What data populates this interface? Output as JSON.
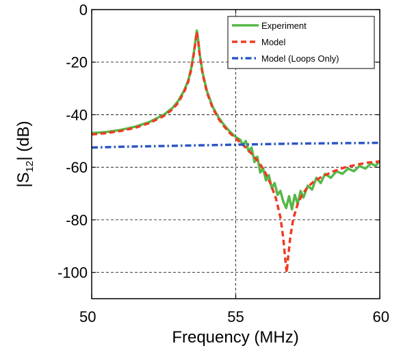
{
  "chart_data": {
    "type": "line",
    "title": "",
    "xlabel": "Frequency (MHz)",
    "ylabel": {
      "prefix": "|S",
      "sub": "12",
      "suffix": "| (dB)"
    },
    "xlim": [
      50,
      60
    ],
    "ylim": [
      -110,
      0
    ],
    "xticks": [
      50,
      55,
      60
    ],
    "yticks": [
      0,
      -20,
      -40,
      -60,
      -80,
      -100
    ],
    "grid": true,
    "legend_position": "top-right",
    "colors": {
      "experiment": "#55b847",
      "model": "#ee3b22",
      "loops": "#2a56c6"
    },
    "series": [
      {
        "name": "Experiment",
        "style": "solid",
        "points": [
          [
            50,
            -47
          ],
          [
            50.5,
            -46.6
          ],
          [
            51,
            -45.8
          ],
          [
            51.5,
            -44.6
          ],
          [
            52,
            -42.8
          ],
          [
            52.5,
            -40
          ],
          [
            52.8,
            -37.5
          ],
          [
            53,
            -34.8
          ],
          [
            53.2,
            -31
          ],
          [
            53.35,
            -27
          ],
          [
            53.45,
            -22.5
          ],
          [
            53.55,
            -16
          ],
          [
            53.6,
            -12
          ],
          [
            53.65,
            -8
          ],
          [
            53.7,
            -12
          ],
          [
            53.75,
            -17
          ],
          [
            53.85,
            -24
          ],
          [
            54,
            -31
          ],
          [
            54.2,
            -37
          ],
          [
            54.4,
            -41
          ],
          [
            54.6,
            -44
          ],
          [
            54.8,
            -46.5
          ],
          [
            55,
            -48.5
          ],
          [
            55.15,
            -49.5
          ],
          [
            55.25,
            -51.5
          ],
          [
            55.35,
            -50
          ],
          [
            55.45,
            -54
          ],
          [
            55.55,
            -52.5
          ],
          [
            55.65,
            -58
          ],
          [
            55.75,
            -56
          ],
          [
            55.85,
            -62
          ],
          [
            55.95,
            -60.5
          ],
          [
            56.05,
            -65
          ],
          [
            56.15,
            -63
          ],
          [
            56.25,
            -68
          ],
          [
            56.35,
            -66
          ],
          [
            56.45,
            -70.5
          ],
          [
            56.55,
            -69
          ],
          [
            56.65,
            -73
          ],
          [
            56.75,
            -75.5
          ],
          [
            56.85,
            -71
          ],
          [
            56.95,
            -76
          ],
          [
            57.05,
            -70.5
          ],
          [
            57.15,
            -74
          ],
          [
            57.25,
            -69
          ],
          [
            57.35,
            -71.5
          ],
          [
            57.5,
            -67
          ],
          [
            57.65,
            -68.5
          ],
          [
            57.8,
            -64
          ],
          [
            57.95,
            -66
          ],
          [
            58.1,
            -62.5
          ],
          [
            58.3,
            -64
          ],
          [
            58.5,
            -61.5
          ],
          [
            58.7,
            -62.5
          ],
          [
            58.9,
            -60.5
          ],
          [
            59.1,
            -61.5
          ],
          [
            59.3,
            -59.5
          ],
          [
            59.5,
            -60.5
          ],
          [
            59.7,
            -58.5
          ],
          [
            59.85,
            -59.5
          ],
          [
            60,
            -57.5
          ]
        ]
      },
      {
        "name": "Model",
        "style": "dashed",
        "points": [
          [
            50,
            -47.5
          ],
          [
            50.5,
            -47
          ],
          [
            51,
            -46.2
          ],
          [
            51.5,
            -45
          ],
          [
            52,
            -43.2
          ],
          [
            52.5,
            -40.5
          ],
          [
            52.8,
            -38
          ],
          [
            53,
            -35.5
          ],
          [
            53.2,
            -31.5
          ],
          [
            53.35,
            -27.5
          ],
          [
            53.45,
            -23
          ],
          [
            53.55,
            -16.5
          ],
          [
            53.6,
            -12.5
          ],
          [
            53.65,
            -8.5
          ],
          [
            53.7,
            -12.5
          ],
          [
            53.75,
            -17.5
          ],
          [
            53.85,
            -24.5
          ],
          [
            54,
            -31.5
          ],
          [
            54.2,
            -37.5
          ],
          [
            54.4,
            -41.5
          ],
          [
            54.6,
            -44.5
          ],
          [
            54.8,
            -47
          ],
          [
            55,
            -49
          ],
          [
            55.2,
            -51
          ],
          [
            55.4,
            -53
          ],
          [
            55.6,
            -55.5
          ],
          [
            55.8,
            -58
          ],
          [
            56,
            -61.5
          ],
          [
            56.2,
            -66
          ],
          [
            56.4,
            -72
          ],
          [
            56.55,
            -79
          ],
          [
            56.65,
            -87
          ],
          [
            56.72,
            -95
          ],
          [
            56.77,
            -100
          ],
          [
            56.82,
            -94
          ],
          [
            56.9,
            -86
          ],
          [
            57,
            -79.5
          ],
          [
            57.15,
            -74
          ],
          [
            57.3,
            -70.5
          ],
          [
            57.5,
            -67.5
          ],
          [
            57.7,
            -65.5
          ],
          [
            58,
            -63.5
          ],
          [
            58.4,
            -61.5
          ],
          [
            58.8,
            -60
          ],
          [
            59.2,
            -59
          ],
          [
            59.6,
            -58.2
          ],
          [
            60,
            -57.8
          ]
        ]
      },
      {
        "name": "Model (Loops Only)",
        "style": "dashdot",
        "points": [
          [
            50,
            -52.5
          ],
          [
            51,
            -52.2
          ],
          [
            52,
            -52
          ],
          [
            53,
            -51.8
          ],
          [
            54,
            -51.6
          ],
          [
            55,
            -51.4
          ],
          [
            56,
            -51.2
          ],
          [
            57,
            -51
          ],
          [
            58,
            -50.9
          ],
          [
            59,
            -50.8
          ],
          [
            60,
            -50.7
          ]
        ]
      }
    ]
  }
}
